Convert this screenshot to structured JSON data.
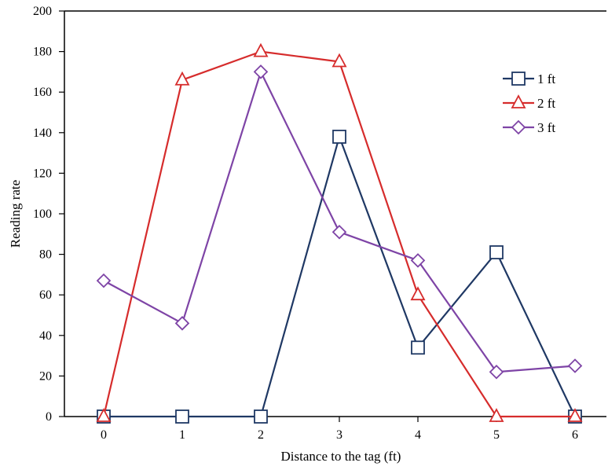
{
  "chart_data": {
    "type": "line",
    "title": "",
    "xlabel": "Distance to the tag (ft)",
    "ylabel": "Reading rate",
    "x": [
      0,
      1,
      2,
      3,
      4,
      5,
      6
    ],
    "x_tick_labels": [
      "0",
      "1",
      "2",
      "3",
      "4",
      "5",
      "6"
    ],
    "xlim": [
      -0.5,
      6.4
    ],
    "ylim": [
      0,
      200
    ],
    "y_ticks": [
      0,
      20,
      40,
      60,
      80,
      100,
      120,
      140,
      160,
      180,
      200
    ],
    "y_tick_labels": [
      "0",
      "20",
      "40",
      "60",
      "80",
      "100",
      "120",
      "140",
      "160",
      "180",
      "200"
    ],
    "grid": false,
    "legend_position": "top-right",
    "series": [
      {
        "name": "1 ft",
        "color": "#1f3864",
        "marker": "square",
        "values": [
          0,
          0,
          0,
          138,
          34,
          81,
          0
        ]
      },
      {
        "name": "2 ft",
        "color": "#d62c2c",
        "marker": "triangle",
        "values": [
          0,
          166,
          180,
          175,
          60,
          0,
          0
        ]
      },
      {
        "name": "3 ft",
        "color": "#7e44a6",
        "marker": "diamond",
        "values": [
          67,
          46,
          170,
          91,
          77,
          22,
          25
        ]
      }
    ]
  }
}
